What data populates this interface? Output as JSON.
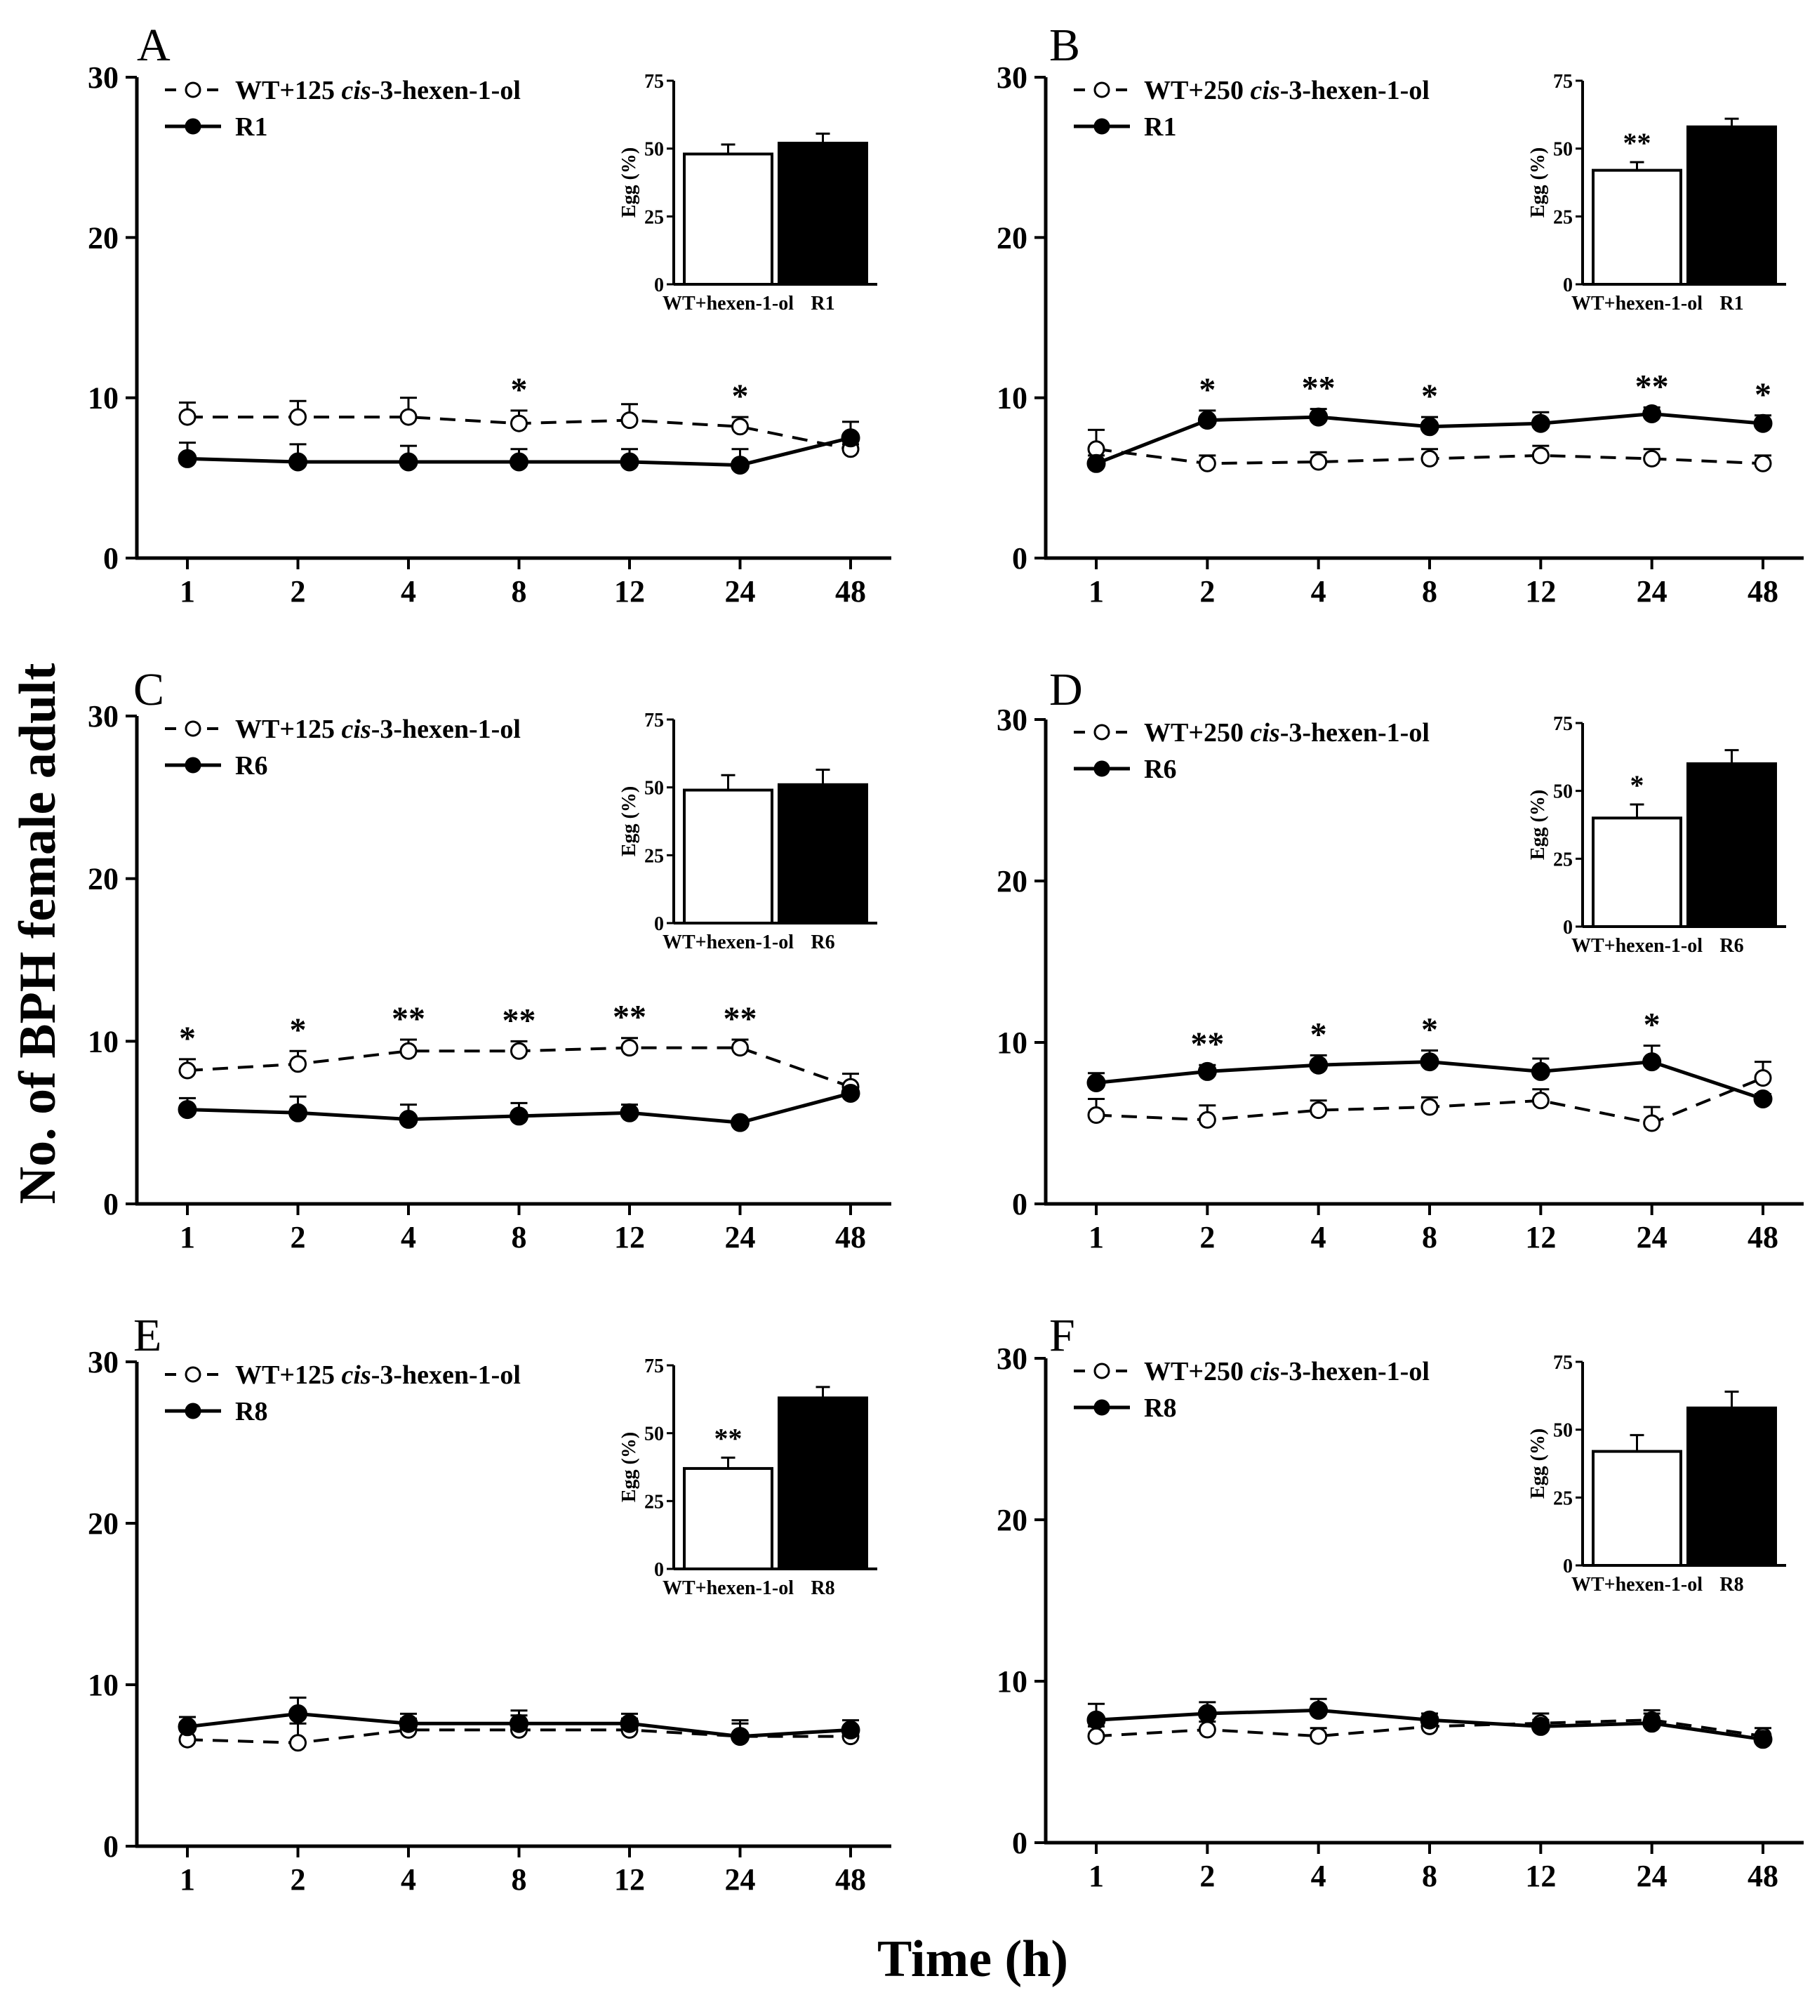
{
  "figure": {
    "ylabel": "No.  of BPH female adult",
    "xlabel": "Time (h)"
  },
  "chart_data": [
    {
      "panel": "A",
      "type": "line",
      "x": [
        "1",
        "2",
        "4",
        "8",
        "12",
        "24",
        "48"
      ],
      "ylim": [
        0,
        30
      ],
      "yticks": [
        "0",
        "10",
        "20",
        "30"
      ],
      "series": [
        {
          "name": "WT+125",
          "name_italic": "cis",
          "name_rest": "-3-hexen-1-ol",
          "style": "dashed-open",
          "values": [
            8.8,
            8.8,
            8.8,
            8.4,
            8.6,
            8.2,
            6.8
          ],
          "errors": [
            0.9,
            1.0,
            1.2,
            0.8,
            1.0,
            0.6,
            0.3
          ]
        },
        {
          "name": "R1",
          "style": "solid-filled",
          "values": [
            6.2,
            6.0,
            6.0,
            6.0,
            6.0,
            5.8,
            7.5
          ],
          "errors": [
            1.0,
            1.1,
            1.0,
            0.8,
            0.8,
            1.0,
            1.0
          ]
        }
      ],
      "significance": [
        {
          "x": "8",
          "label": "*"
        },
        {
          "x": "24",
          "label": "*"
        }
      ],
      "inset": {
        "type": "bar",
        "ylabel": "Egg (%)",
        "ylim": [
          0,
          75
        ],
        "yticks": [
          "0",
          "25",
          "50",
          "75"
        ],
        "categories": [
          "WT+hexen-1-ol",
          "R1"
        ],
        "values": [
          48,
          52
        ],
        "errors": [
          3.5,
          3.5
        ],
        "significance": ""
      }
    },
    {
      "panel": "B",
      "type": "line",
      "x": [
        "1",
        "2",
        "4",
        "8",
        "12",
        "24",
        "48"
      ],
      "ylim": [
        0,
        30
      ],
      "yticks": [
        "0",
        "10",
        "20",
        "30"
      ],
      "series": [
        {
          "name": "WT+250",
          "name_italic": "cis",
          "name_rest": "-3-hexen-1-ol",
          "style": "dashed-open",
          "values": [
            6.8,
            5.9,
            6.0,
            6.2,
            6.4,
            6.2,
            5.9
          ],
          "errors": [
            1.2,
            0.5,
            0.6,
            0.6,
            0.6,
            0.6,
            0.5
          ]
        },
        {
          "name": "R1",
          "style": "solid-filled",
          "values": [
            5.9,
            8.6,
            8.8,
            8.2,
            8.4,
            9.0,
            8.4
          ],
          "errors": [
            0.5,
            0.6,
            0.5,
            0.6,
            0.7,
            0.4,
            0.5
          ]
        }
      ],
      "significance": [
        {
          "x": "2",
          "label": "*"
        },
        {
          "x": "4",
          "label": "**"
        },
        {
          "x": "8",
          "label": "*"
        },
        {
          "x": "24",
          "label": "**"
        },
        {
          "x": "48",
          "label": "*"
        }
      ],
      "inset": {
        "type": "bar",
        "ylabel": "Egg (%)",
        "ylim": [
          0,
          75
        ],
        "yticks": [
          "0",
          "25",
          "50",
          "75"
        ],
        "categories": [
          "WT+hexen-1-ol",
          "R1"
        ],
        "values": [
          42,
          58
        ],
        "errors": [
          3,
          3
        ],
        "significance": "**"
      }
    },
    {
      "panel": "C",
      "type": "line",
      "x": [
        "1",
        "2",
        "4",
        "8",
        "12",
        "24",
        "48"
      ],
      "ylim": [
        0,
        30
      ],
      "yticks": [
        "0",
        "10",
        "20",
        "30"
      ],
      "series": [
        {
          "name": "WT+125",
          "name_italic": "cis",
          "name_rest": "-3-hexen-1-ol",
          "style": "dashed-open",
          "values": [
            8.2,
            8.6,
            9.4,
            9.4,
            9.6,
            9.6,
            7.2
          ],
          "errors": [
            0.7,
            0.8,
            0.7,
            0.6,
            0.6,
            0.5,
            0.8
          ]
        },
        {
          "name": "R6",
          "style": "solid-filled",
          "values": [
            5.8,
            5.6,
            5.2,
            5.4,
            5.6,
            5.0,
            6.8
          ],
          "errors": [
            0.7,
            1.0,
            0.9,
            0.8,
            0.5,
            0.2,
            0.3
          ]
        }
      ],
      "significance": [
        {
          "x": "1",
          "label": "*"
        },
        {
          "x": "2",
          "label": "*"
        },
        {
          "x": "4",
          "label": "**"
        },
        {
          "x": "8",
          "label": "**"
        },
        {
          "x": "12",
          "label": "**"
        },
        {
          "x": "24",
          "label": "**"
        }
      ],
      "inset": {
        "type": "bar",
        "ylabel": "Egg (%)",
        "ylim": [
          0,
          75
        ],
        "yticks": [
          "0",
          "25",
          "50",
          "75"
        ],
        "categories": [
          "WT+hexen-1-ol",
          "R6"
        ],
        "values": [
          49,
          51
        ],
        "errors": [
          5.5,
          5.5
        ],
        "significance": ""
      }
    },
    {
      "panel": "D",
      "type": "line",
      "x": [
        "1",
        "2",
        "4",
        "8",
        "12",
        "24",
        "48"
      ],
      "ylim": [
        0,
        30
      ],
      "yticks": [
        "0",
        "10",
        "20",
        "30"
      ],
      "series": [
        {
          "name": "WT+250",
          "name_italic": "cis",
          "name_rest": "-3-hexen-1-ol",
          "style": "dashed-open",
          "values": [
            5.5,
            5.2,
            5.8,
            6.0,
            6.4,
            5.0,
            7.8
          ],
          "errors": [
            1.0,
            0.9,
            0.6,
            0.6,
            0.7,
            1.0,
            1.0
          ]
        },
        {
          "name": "R6",
          "style": "solid-filled",
          "values": [
            7.5,
            8.2,
            8.6,
            8.8,
            8.2,
            8.8,
            6.5
          ],
          "errors": [
            0.6,
            0.4,
            0.6,
            0.7,
            0.8,
            1.0,
            0.3
          ]
        }
      ],
      "significance": [
        {
          "x": "2",
          "label": "**"
        },
        {
          "x": "4",
          "label": "*"
        },
        {
          "x": "8",
          "label": "*"
        },
        {
          "x": "24",
          "label": "*"
        }
      ],
      "inset": {
        "type": "bar",
        "ylabel": "Egg (%)",
        "ylim": [
          0,
          75
        ],
        "yticks": [
          "0",
          "25",
          "50",
          "75"
        ],
        "categories": [
          "WT+hexen-1-ol",
          "R6"
        ],
        "values": [
          40,
          60
        ],
        "errors": [
          5,
          5
        ],
        "significance": "*"
      }
    },
    {
      "panel": "E",
      "type": "line",
      "x": [
        "1",
        "2",
        "4",
        "8",
        "12",
        "24",
        "48"
      ],
      "ylim": [
        0,
        30
      ],
      "yticks": [
        "0",
        "10",
        "20",
        "30"
      ],
      "series": [
        {
          "name": "WT+125",
          "name_italic": "cis",
          "name_rest": "-3-hexen-1-ol",
          "style": "dashed-open",
          "values": [
            6.6,
            6.4,
            7.2,
            7.2,
            7.2,
            6.8,
            6.8
          ],
          "errors": [
            0.8,
            1.2,
            0.7,
            0.9,
            0.7,
            0.8,
            0.5
          ]
        },
        {
          "name": "R8",
          "style": "solid-filled",
          "values": [
            7.4,
            8.2,
            7.6,
            7.6,
            7.6,
            6.8,
            7.2
          ],
          "errors": [
            0.6,
            1.0,
            0.6,
            0.8,
            0.6,
            1.0,
            0.6
          ]
        }
      ],
      "significance": [],
      "inset": {
        "type": "bar",
        "ylabel": "Egg (%)",
        "ylim": [
          0,
          75
        ],
        "yticks": [
          "0",
          "25",
          "50",
          "75"
        ],
        "categories": [
          "WT+hexen-1-ol",
          "R8"
        ],
        "values": [
          37,
          63
        ],
        "errors": [
          4,
          4
        ],
        "significance": "**"
      }
    },
    {
      "panel": "F",
      "type": "line",
      "x": [
        "1",
        "2",
        "4",
        "8",
        "12",
        "24",
        "48"
      ],
      "ylim": [
        0,
        30
      ],
      "yticks": [
        "0",
        "10",
        "20",
        "30"
      ],
      "series": [
        {
          "name": "WT+250",
          "name_italic": "cis",
          "name_rest": "-3-hexen-1-ol",
          "style": "dashed-open",
          "values": [
            6.6,
            7.0,
            6.6,
            7.2,
            7.4,
            7.6,
            6.6
          ],
          "errors": [
            0.6,
            0.5,
            0.5,
            0.4,
            0.6,
            0.6,
            0.5
          ]
        },
        {
          "name": "R8",
          "style": "solid-filled",
          "values": [
            7.6,
            8.0,
            8.2,
            7.6,
            7.2,
            7.4,
            6.4
          ],
          "errors": [
            1.0,
            0.7,
            0.7,
            0.4,
            0.4,
            0.6,
            0.3
          ]
        }
      ],
      "significance": [],
      "inset": {
        "type": "bar",
        "ylabel": "Egg (%)",
        "ylim": [
          0,
          75
        ],
        "yticks": [
          "0",
          "25",
          "50",
          "75"
        ],
        "categories": [
          "WT+hexen-1-ol",
          "R8"
        ],
        "values": [
          42,
          58
        ],
        "errors": [
          6,
          6
        ],
        "significance": ""
      }
    }
  ]
}
